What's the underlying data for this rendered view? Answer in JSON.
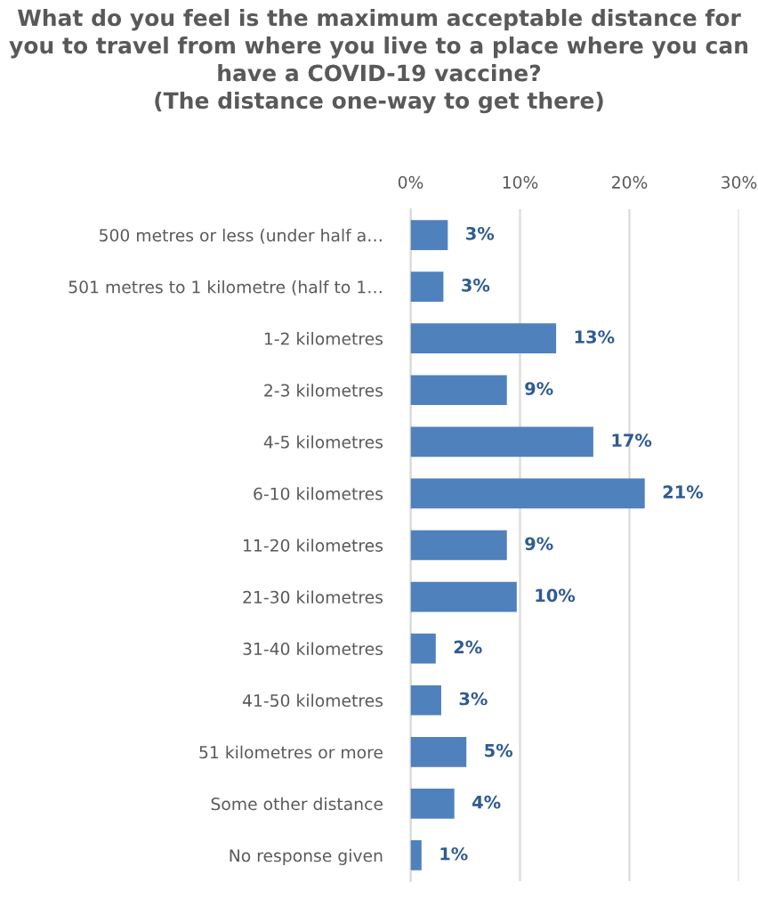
{
  "chart_data": {
    "type": "bar",
    "orientation": "horizontal",
    "title": "What do you feel is the maximum acceptable distance for you to travel from where you live to a place where you can have a COVID-19 vaccine?\n(The distance one-way to get there)",
    "categories": [
      "500 metres or less (under half a…",
      "501 metres to 1 kilometre (half to 1…",
      "1-2 kilometres",
      "2-3 kilometres",
      "4-5 kilometres",
      "6-10 kilometres",
      "11-20 kilometres",
      "21-30 kilometres",
      "31-40 kilometres",
      "41-50 kilometres",
      "51 kilometres or more",
      "Some other distance",
      "No response given"
    ],
    "values": [
      3.4,
      3.0,
      13.3,
      8.8,
      16.7,
      21.4,
      8.8,
      9.7,
      2.3,
      2.8,
      5.1,
      4.0,
      1.0
    ],
    "value_labels": [
      "3%",
      "3%",
      "13%",
      "9%",
      "17%",
      "21%",
      "9%",
      "10%",
      "2%",
      "3%",
      "5%",
      "4%",
      "1%"
    ],
    "color": "#4f81bd",
    "xlim": [
      0,
      30
    ],
    "xticks": [
      {
        "value": 0,
        "label": "0%"
      },
      {
        "value": 10,
        "label": "10%"
      },
      {
        "value": 20,
        "label": "20%"
      },
      {
        "value": 30,
        "label": "30%"
      }
    ],
    "grid": "x",
    "legend": false
  }
}
